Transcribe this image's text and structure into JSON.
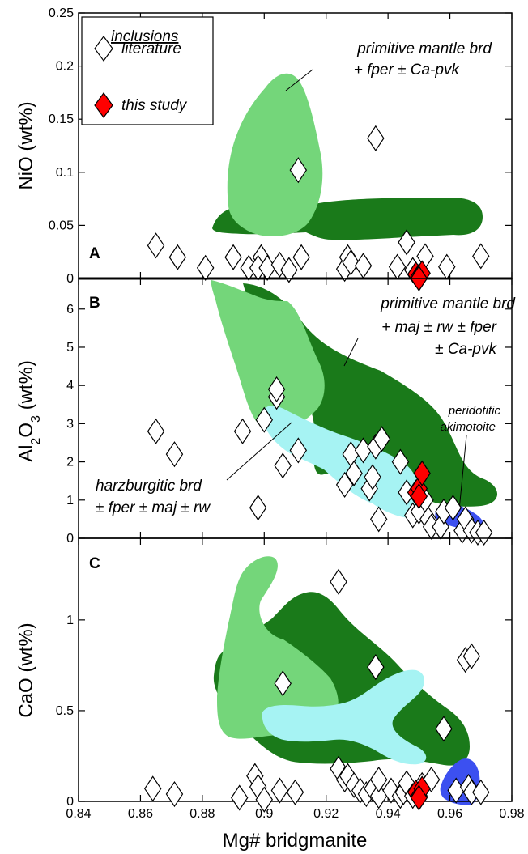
{
  "colors": {
    "primitive_light": "#74d67a",
    "primitive_dark": "#1a7a1a",
    "harzburgitic": "#a6f3f3",
    "akimotoite": "#3c50f0",
    "literature_fill": "#ffffff",
    "this_study_fill": "#ff0000"
  },
  "xaxis": {
    "label": "Mg# bridgmanite",
    "range": [
      0.84,
      0.98
    ],
    "ticks": [
      "0.84",
      "0.86",
      "0.88",
      "0.9",
      "0.92",
      "0.94",
      "0.96",
      "0.98"
    ]
  },
  "legend": {
    "title": "inclusions",
    "items": [
      {
        "label": "literature",
        "marker": "open-diamond"
      },
      {
        "label": "this study",
        "marker": "red-diamond"
      }
    ]
  },
  "panels": {
    "A": {
      "letter": "A",
      "ylabel": "NiO (wt%)",
      "ticks": [
        "0",
        "0.05",
        "0.1",
        "0.15",
        "0.2",
        "0.25"
      ],
      "annotation_lines": [
        "primitive  mantle brd",
        "+ fper ± Ca-pvk"
      ]
    },
    "B": {
      "letter": "B",
      "ylabel_main": "Al",
      "ylabel_sub1": "2",
      "ylabel_mid": "O",
      "ylabel_sub2": "3",
      "ylabel_tail": " (wt%)",
      "ticks": [
        "0",
        "1",
        "2",
        "3",
        "4",
        "5",
        "6"
      ],
      "annotation_lines": [
        "primitive mantle brd",
        "+ maj ± rw ± fper",
        "± Ca-pvk"
      ],
      "harz_lines": [
        "harzburgitic brd",
        "± fper ± maj ± rw"
      ],
      "aki_lines": [
        "peridotitic",
        "akimotoite"
      ]
    },
    "C": {
      "letter": "C",
      "ylabel": "CaO (wt%)",
      "ticks": [
        "0",
        "0.5",
        "1"
      ]
    }
  },
  "chart_data": [
    {
      "type": "scatter",
      "panel": "A",
      "xlabel": "Mg# bridgmanite",
      "ylabel": "NiO (wt%)",
      "xlim": [
        0.84,
        0.98
      ],
      "ylim": [
        0,
        0.25
      ],
      "series": [
        {
          "name": "literature",
          "points": [
            [
              0.865,
              0.031
            ],
            [
              0.872,
              0.02
            ],
            [
              0.881,
              0.01
            ],
            [
              0.89,
              0.02
            ],
            [
              0.895,
              0.01
            ],
            [
              0.899,
              0.02
            ],
            [
              0.898,
              0.01
            ],
            [
              0.901,
              0.01
            ],
            [
              0.905,
              0.013
            ],
            [
              0.908,
              0.008
            ],
            [
              0.912,
              0.02
            ],
            [
              0.911,
              0.102
            ],
            [
              0.926,
              0.009
            ],
            [
              0.927,
              0.02
            ],
            [
              0.928,
              0.015
            ],
            [
              0.932,
              0.012
            ],
            [
              0.936,
              0.132
            ],
            [
              0.943,
              0.011
            ],
            [
              0.946,
              0.034
            ],
            [
              0.948,
              0.008
            ],
            [
              0.952,
              0.021
            ],
            [
              0.959,
              0.011
            ],
            [
              0.97,
              0.021
            ]
          ]
        },
        {
          "name": "this study",
          "points": [
            [
              0.949,
              0.004
            ],
            [
              0.95,
              0.002
            ],
            [
              0.951,
              0.005
            ],
            [
              0.95,
              0.0
            ]
          ]
        }
      ]
    },
    {
      "type": "scatter",
      "panel": "B",
      "xlabel": "Mg# bridgmanite",
      "ylabel": "Al2O3 (wt%)",
      "xlim": [
        0.84,
        0.98
      ],
      "ylim": [
        0,
        6.8
      ],
      "series": [
        {
          "name": "literature",
          "points": [
            [
              0.865,
              2.8
            ],
            [
              0.871,
              2.2
            ],
            [
              0.893,
              2.8
            ],
            [
              0.898,
              0.8
            ],
            [
              0.9,
              3.1
            ],
            [
              0.904,
              3.7
            ],
            [
              0.904,
              3.9
            ],
            [
              0.906,
              1.9
            ],
            [
              0.911,
              2.3
            ],
            [
              0.926,
              1.4
            ],
            [
              0.928,
              2.2
            ],
            [
              0.929,
              1.7
            ],
            [
              0.932,
              2.3
            ],
            [
              0.934,
              1.3
            ],
            [
              0.935,
              1.6
            ],
            [
              0.936,
              2.4
            ],
            [
              0.937,
              0.5
            ],
            [
              0.938,
              2.6
            ],
            [
              0.944,
              2.0
            ],
            [
              0.946,
              1.2
            ],
            [
              0.948,
              0.6
            ],
            [
              0.95,
              0.7
            ],
            [
              0.952,
              1.0
            ],
            [
              0.953,
              0.5
            ],
            [
              0.954,
              0.3
            ],
            [
              0.957,
              0.3
            ],
            [
              0.958,
              0.7
            ],
            [
              0.961,
              0.8
            ],
            [
              0.964,
              0.2
            ],
            [
              0.965,
              0.5
            ],
            [
              0.967,
              0.2
            ],
            [
              0.969,
              0.15
            ],
            [
              0.971,
              0.15
            ]
          ]
        },
        {
          "name": "this study",
          "points": [
            [
              0.949,
              1.2
            ],
            [
              0.95,
              1.3
            ],
            [
              0.951,
              1.7
            ],
            [
              0.95,
              1.1
            ]
          ]
        }
      ]
    },
    {
      "type": "scatter",
      "panel": "C",
      "xlabel": "Mg# bridgmanite",
      "ylabel": "CaO (wt%)",
      "xlim": [
        0.84,
        0.98
      ],
      "ylim": [
        0,
        1.45
      ],
      "series": [
        {
          "name": "literature",
          "points": [
            [
              0.864,
              0.07
            ],
            [
              0.871,
              0.04
            ],
            [
              0.892,
              0.02
            ],
            [
              0.897,
              0.14
            ],
            [
              0.898,
              0.08
            ],
            [
              0.9,
              0.01
            ],
            [
              0.905,
              0.06
            ],
            [
              0.906,
              0.65
            ],
            [
              0.91,
              0.05
            ],
            [
              0.924,
              0.18
            ],
            [
              0.926,
              0.12
            ],
            [
              0.927,
              0.14
            ],
            [
              0.929,
              0.09
            ],
            [
              0.931,
              0.06
            ],
            [
              0.933,
              0.04
            ],
            [
              0.935,
              0.07
            ],
            [
              0.936,
              0.74
            ],
            [
              0.937,
              0.03
            ],
            [
              0.937,
              0.12
            ],
            [
              0.941,
              0.06
            ],
            [
              0.944,
              0.03
            ],
            [
              0.945,
              0.05
            ],
            [
              0.946,
              0.1
            ],
            [
              0.948,
              0.03
            ],
            [
              0.95,
              0.06
            ],
            [
              0.951,
              0.09
            ],
            [
              0.954,
              0.12
            ],
            [
              0.958,
              0.4
            ],
            [
              0.962,
              0.06
            ],
            [
              0.965,
              0.78
            ],
            [
              0.966,
              0.08
            ],
            [
              0.967,
              0.8
            ],
            [
              0.967,
              0.05
            ],
            [
              0.97,
              0.05
            ],
            [
              0.924,
              1.21
            ]
          ]
        },
        {
          "name": "this study",
          "points": [
            [
              0.949,
              0.05
            ],
            [
              0.95,
              0.03
            ],
            [
              0.951,
              0.07
            ],
            [
              0.95,
              0.02
            ]
          ]
        }
      ]
    }
  ]
}
